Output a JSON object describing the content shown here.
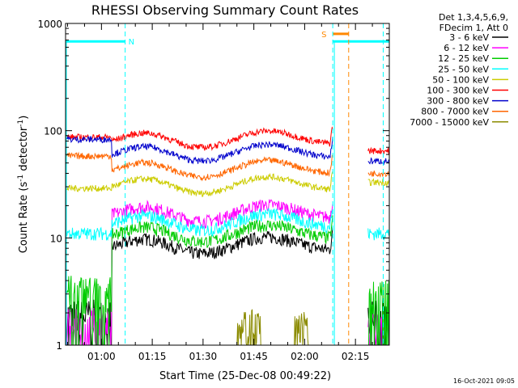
{
  "chart_data": {
    "type": "line",
    "title": "RHESSI Observing Summary Count Rates",
    "xlabel": "Start Time (25-Dec-08 00:49:22)",
    "ylabel_main": "Count Rate (s",
    "ylabel_sup1": "-1",
    "ylabel_mid": " detector",
    "ylabel_sup2": "-1",
    "ylabel_end": ")",
    "yscale": "log",
    "ylim": [
      1,
      1000
    ],
    "xlim_minutes": [
      49.4,
      145.0
    ],
    "x_ticks": [
      {
        "minute": 60,
        "label": "01:00"
      },
      {
        "minute": 75,
        "label": "01:15"
      },
      {
        "minute": 90,
        "label": "01:30"
      },
      {
        "minute": 105,
        "label": "01:45"
      },
      {
        "minute": 120,
        "label": "02:00"
      },
      {
        "minute": 135,
        "label": "02:15"
      }
    ],
    "y_ticks": [
      {
        "value": 1,
        "label": "1"
      },
      {
        "value": 10,
        "label": "10"
      },
      {
        "value": 100,
        "label": "100"
      },
      {
        "value": 1000,
        "label": "1000"
      }
    ],
    "legend_header": [
      "Det 1,3,4,5,6,9,",
      "FDecim 1, Att 0"
    ],
    "series": [
      {
        "name": "3 - 6 keV",
        "color": "#000000",
        "base": 8.5,
        "pre": 1.9,
        "post": 2.0
      },
      {
        "name": "6 - 12 keV",
        "color": "#ff00ff",
        "base": 17,
        "pre": 1.6,
        "post": 1.4
      },
      {
        "name": "12 - 25 keV",
        "color": "#00cc00",
        "base": 11,
        "pre": 3.2,
        "post": 3.0
      },
      {
        "name": "25 - 50 keV",
        "color": "#00ffff",
        "base": 14,
        "pre": 11,
        "post": 11
      },
      {
        "name": "50 - 100 keV",
        "color": "#cccc00",
        "base": 31,
        "pre": 29,
        "post": 33
      },
      {
        "name": "100 - 300 keV",
        "color": "#ff0000",
        "base": 83,
        "pre": 87,
        "post": 65
      },
      {
        "name": "300 - 800 keV",
        "color": "#0000cc",
        "base": 62,
        "pre": 83,
        "post": 52
      },
      {
        "name": "800 - 7000 keV",
        "color": "#ff6600",
        "base": 44,
        "pre": 58,
        "post": 40
      },
      {
        "name": "7000 - 15000 keV",
        "color": "#8b8b00",
        "base": 1.0,
        "pre": 1.0,
        "post": 1.0
      }
    ],
    "saa_flag": {
      "label": "S",
      "color": "#ff8800",
      "start_min": 128.3,
      "end_min": 133.0,
      "value": 800
    },
    "night_flag": {
      "label": "N",
      "color": "#00ffff",
      "start_min": 49.4,
      "end_min": 67.0,
      "value": 680
    },
    "night_flag2": {
      "start_min": 128.3,
      "end_min": 145.0,
      "value": 680
    },
    "markers": [
      {
        "minute": 67.0,
        "color": "#00ffff"
      },
      {
        "minute": 128.3,
        "color": "#00ffff"
      },
      {
        "minute": 133.0,
        "color": "#ff8800"
      },
      {
        "minute": 143.2,
        "color": "#00ffff"
      }
    ],
    "gap": {
      "start_min": 128.3,
      "end_min": 138.6
    }
  },
  "timestamp": "16-Oct-2021 09:05"
}
